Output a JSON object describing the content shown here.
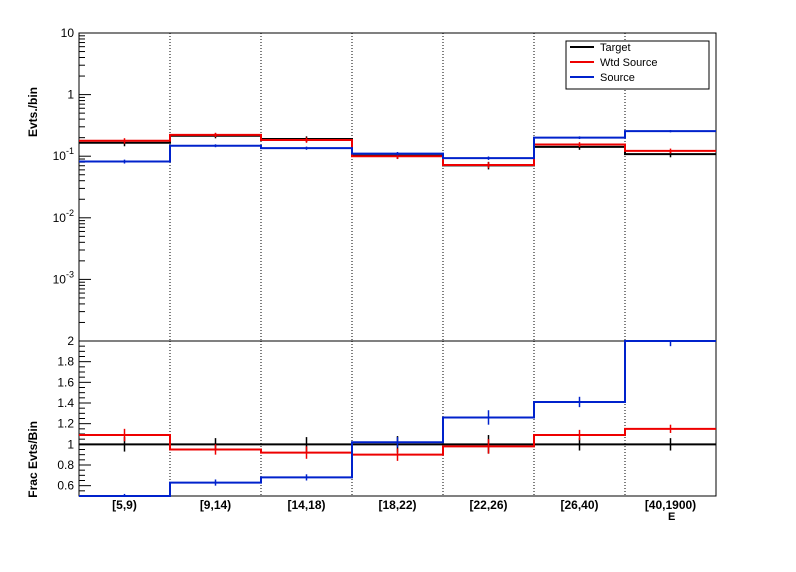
{
  "chart_data": [
    {
      "type": "histogram",
      "panel": "top",
      "ylabel": "Evts./bin",
      "yscale": "log",
      "ylim": [
        0.0001,
        10
      ],
      "y_tick_labels": [
        "10",
        "1",
        "10^-1",
        "10^-2",
        "10^-3"
      ],
      "categories": [
        "[5,9)",
        "[9,14)",
        "[14,18)",
        "[18,22)",
        "[22,26)",
        "[26,40)",
        "[40,1900)"
      ],
      "legend_placement": "top-right",
      "series": [
        {
          "name": "Target",
          "color": "#000000",
          "values": [
            0.165,
            0.215,
            0.19,
            0.102,
            0.071,
            0.142,
            0.108
          ],
          "errors": [
            0.02,
            0.02,
            0.02,
            0.012,
            0.01,
            0.015,
            0.012
          ]
        },
        {
          "name": "Wtd Source",
          "color": "#ee0000",
          "values": [
            0.178,
            0.222,
            0.183,
            0.1,
            0.072,
            0.155,
            0.122
          ],
          "errors": [
            0.018,
            0.018,
            0.018,
            0.01,
            0.008,
            0.014,
            0.011
          ]
        },
        {
          "name": "Source",
          "color": "#0022cc",
          "values": [
            0.082,
            0.148,
            0.135,
            0.11,
            0.093,
            0.2,
            0.255
          ],
          "errors": [
            0.006,
            0.008,
            0.008,
            0.007,
            0.006,
            0.01,
            0.011
          ]
        }
      ]
    },
    {
      "type": "histogram",
      "panel": "bottom",
      "ylabel": "Frac Evts/Bin",
      "xlabel": "E",
      "ylim": [
        0.5,
        2.0
      ],
      "y_ticks": [
        0.6,
        0.8,
        1,
        1.2,
        1.4,
        1.6,
        1.8,
        2
      ],
      "y_tick_labels": [
        "0.6",
        "0.8",
        "1",
        "1.2",
        "1.4",
        "1.6",
        "1.8",
        "2"
      ],
      "categories": [
        "[5,9)",
        "[9,14)",
        "[14,18)",
        "[18,22)",
        "[22,26)",
        "[26,40)",
        "[40,1900)"
      ],
      "series": [
        {
          "name": "Target",
          "color": "#000000",
          "values": [
            1,
            1,
            1,
            1,
            1,
            1,
            1
          ],
          "errors": [
            0.07,
            0.06,
            0.07,
            0.08,
            0.09,
            0.06,
            0.06
          ]
        },
        {
          "name": "Wtd Source",
          "color": "#ee0000",
          "values": [
            1.09,
            0.95,
            0.92,
            0.9,
            0.98,
            1.09,
            1.15
          ],
          "errors": [
            0.06,
            0.05,
            0.06,
            0.06,
            0.07,
            0.05,
            0.04
          ]
        },
        {
          "name": "Source",
          "color": "#0022cc",
          "values": [
            0.5,
            0.63,
            0.68,
            1.02,
            1.26,
            1.41,
            2.0
          ],
          "errors": [
            0.02,
            0.03,
            0.03,
            0.05,
            0.07,
            0.05,
            0.05
          ]
        }
      ]
    }
  ]
}
